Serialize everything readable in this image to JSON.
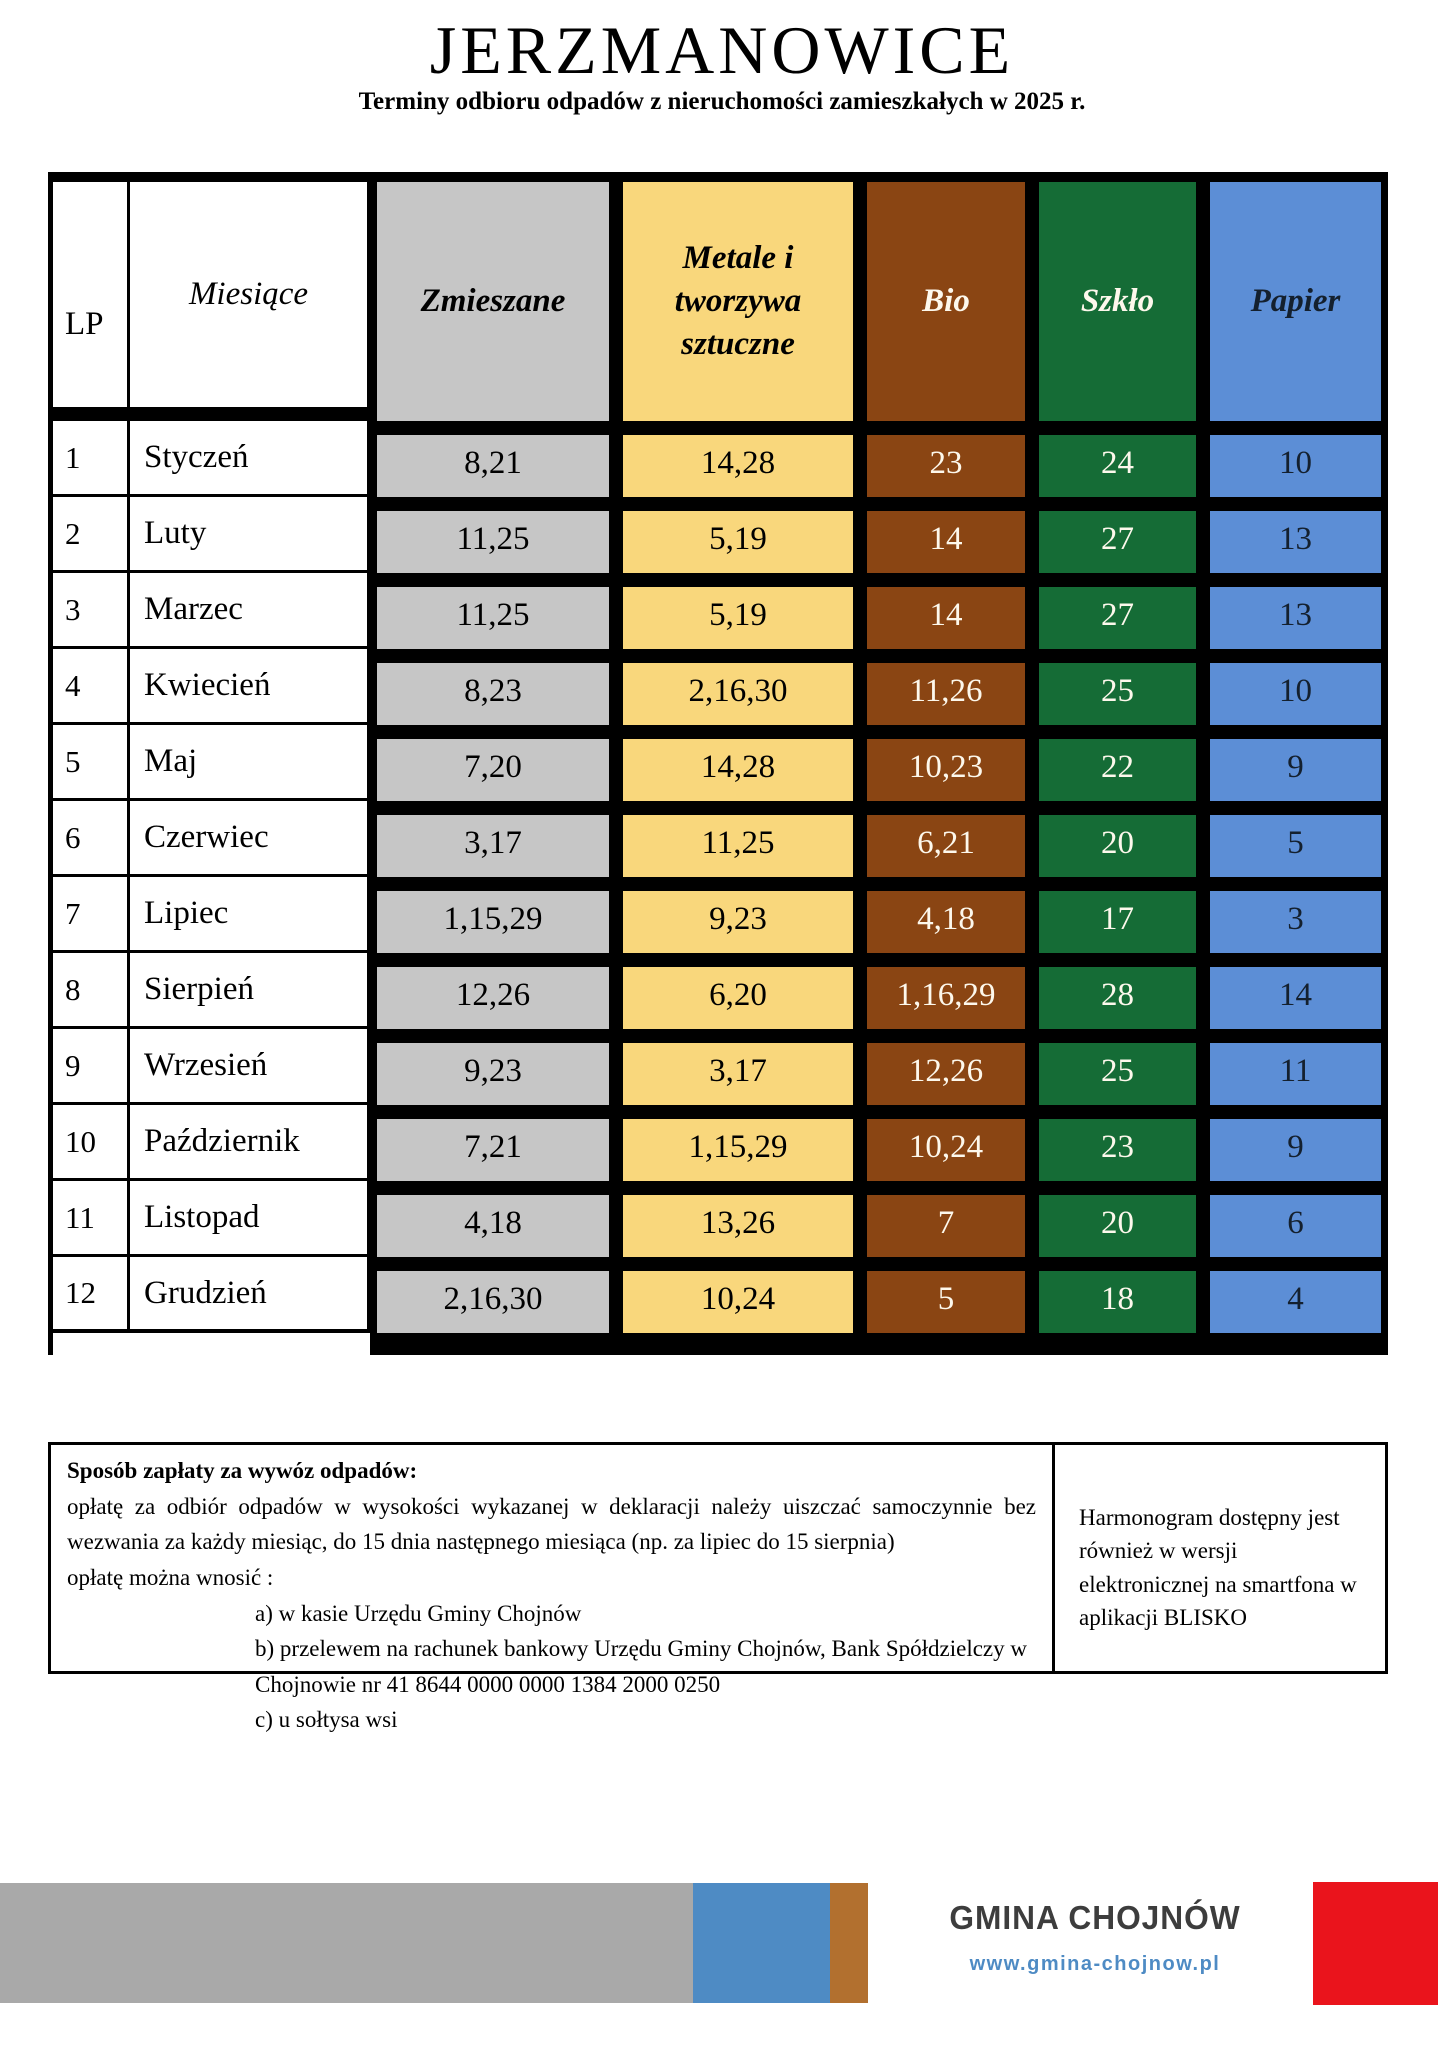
{
  "title": "JERZMANOWICE",
  "subtitle": "Terminy odbioru odpadów z nieruchomości zamieszkałych w 2025 r.",
  "table": {
    "col_lp": "LP",
    "col_month": "Miesiące",
    "columns": [
      {
        "key": "zmieszane",
        "label": "Zmieszane",
        "bg": "#c6c6c6",
        "header_fg": "#000000",
        "fg": "#000000"
      },
      {
        "key": "metale",
        "label": "Metale i tworzywa sztuczne",
        "bg": "#f9d77c",
        "header_fg": "#000000",
        "fg": "#000000"
      },
      {
        "key": "bio",
        "label": "Bio",
        "bg": "#8a4513",
        "header_fg": "#fdf8ec",
        "fg": "#fdf8ec"
      },
      {
        "key": "szklo",
        "label": "Szkło",
        "bg": "#156c36",
        "header_fg": "#fdf8ec",
        "fg": "#fdf8ec"
      },
      {
        "key": "papier",
        "label": "Papier",
        "bg": "#5c8ed6",
        "header_fg": "#14202e",
        "fg": "#14202e"
      }
    ],
    "rows": [
      {
        "lp": "1",
        "month": "Styczeń",
        "zmieszane": "8,21",
        "metale": "14,28",
        "bio": "23",
        "szklo": "24",
        "papier": "10"
      },
      {
        "lp": "2",
        "month": "Luty",
        "zmieszane": "11,25",
        "metale": "5,19",
        "bio": "14",
        "szklo": "27",
        "papier": "13"
      },
      {
        "lp": "3",
        "month": "Marzec",
        "zmieszane": "11,25",
        "metale": "5,19",
        "bio": "14",
        "szklo": "27",
        "papier": "13"
      },
      {
        "lp": "4",
        "month": "Kwiecień",
        "zmieszane": "8,23",
        "metale": "2,16,30",
        "bio": "11,26",
        "szklo": "25",
        "papier": "10"
      },
      {
        "lp": "5",
        "month": "Maj",
        "zmieszane": "7,20",
        "metale": "14,28",
        "bio": "10,23",
        "szklo": "22",
        "papier": "9"
      },
      {
        "lp": "6",
        "month": "Czerwiec",
        "zmieszane": "3,17",
        "metale": "11,25",
        "bio": "6,21",
        "szklo": "20",
        "papier": "5"
      },
      {
        "lp": "7",
        "month": "Lipiec",
        "zmieszane": "1,15,29",
        "metale": "9,23",
        "bio": "4,18",
        "szklo": "17",
        "papier": "3"
      },
      {
        "lp": "8",
        "month": "Sierpień",
        "zmieszane": "12,26",
        "metale": "6,20",
        "bio": "1,16,29",
        "szklo": "28",
        "papier": "14"
      },
      {
        "lp": "9",
        "month": "Wrzesień",
        "zmieszane": "9,23",
        "metale": "3,17",
        "bio": "12,26",
        "szklo": "25",
        "papier": "11"
      },
      {
        "lp": "10",
        "month": "Październik",
        "zmieszane": "7,21",
        "metale": "1,15,29",
        "bio": "10,24",
        "szklo": "23",
        "papier": "9"
      },
      {
        "lp": "11",
        "month": "Listopad",
        "zmieszane": "4,18",
        "metale": "13,26",
        "bio": "7",
        "szklo": "20",
        "papier": "6"
      },
      {
        "lp": "12",
        "month": "Grudzień",
        "zmieszane": "2,16,30",
        "metale": "10,24",
        "bio": "5",
        "szklo": "18",
        "papier": "4"
      }
    ]
  },
  "payment": {
    "heading": "Sposób zapłaty za wywóz odpadów:",
    "line1": "opłatę za odbiór odpadów w wysokości wykazanej w deklaracji należy uiszczać samoczynnie bez wezwania za każdy miesiąc, do 15 dnia następnego miesiąca (np. za lipiec do 15 sierpnia)",
    "line2": "opłatę można wnosić :",
    "item_a": "a) w kasie Urzędu Gminy Chojnów",
    "item_b": "b) przelewem na rachunek bankowy Urzędu Gminy Chojnów,  Bank Spółdzielczy w Chojnowie nr 41 8644  0000 0000 1384 2000 0250",
    "item_c": "c) u sołtysa wsi",
    "side_note": "Harmonogram dostępny jest również w wersji elektronicznej na smartfona w aplikacji BLISKO"
  },
  "footer": {
    "org_name": "GMINA CHOJNÓW",
    "website": "www.gmina-chojnow.pl",
    "colors": {
      "gray_bar": "#a9a9a9",
      "blue_bar": "#4e8bc4",
      "brown_bar": "#b2702f",
      "red_block": "#ea141c",
      "website_text": "#4e8bc4"
    }
  }
}
